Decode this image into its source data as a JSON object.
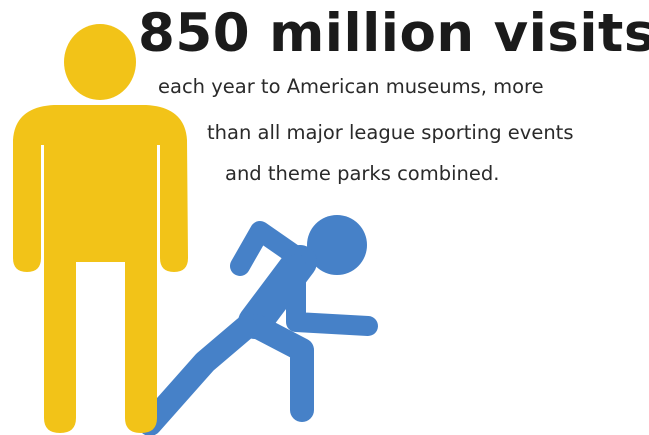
{
  "headline": "850 million visits",
  "body_lines": [
    "each year to American museums, more",
    "than all major league sporting events",
    "and theme parks combined."
  ],
  "icons": {
    "standing_person": "standing-person-icon",
    "running_person": "running-person-icon"
  },
  "colors": {
    "standing_person": "#F2C318",
    "running_person": "#4681C8",
    "text": "#1B1B1B",
    "background": "#FFFFFF"
  }
}
